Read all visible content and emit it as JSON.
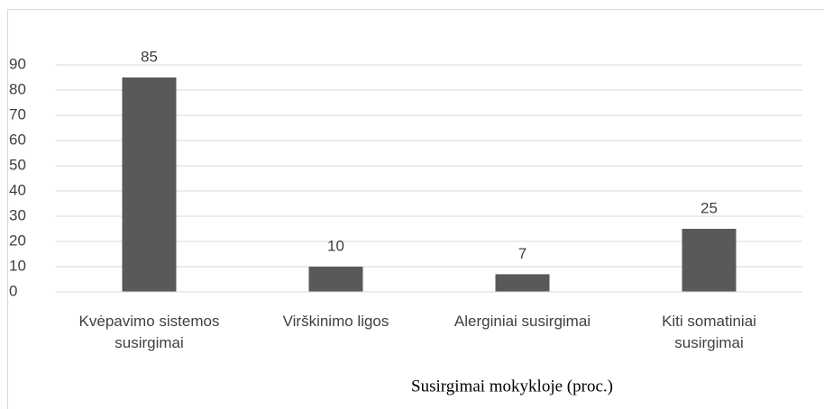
{
  "chart_data": {
    "type": "bar",
    "x_label": "Susirgimai mokykloje (proc.)",
    "categories": [
      "Kvėpavimo sistemos susirgimai",
      "Virškinimo ligos",
      "Alerginiai susirgimai",
      "Kiti somatiniai susirgimai"
    ],
    "values": [
      85,
      10,
      7,
      25
    ],
    "color": "#595959",
    "ylim": [
      0,
      90
    ],
    "yticks": [
      0,
      10,
      20,
      30,
      40,
      50,
      60,
      70,
      80,
      90
    ],
    "grid": true
  }
}
